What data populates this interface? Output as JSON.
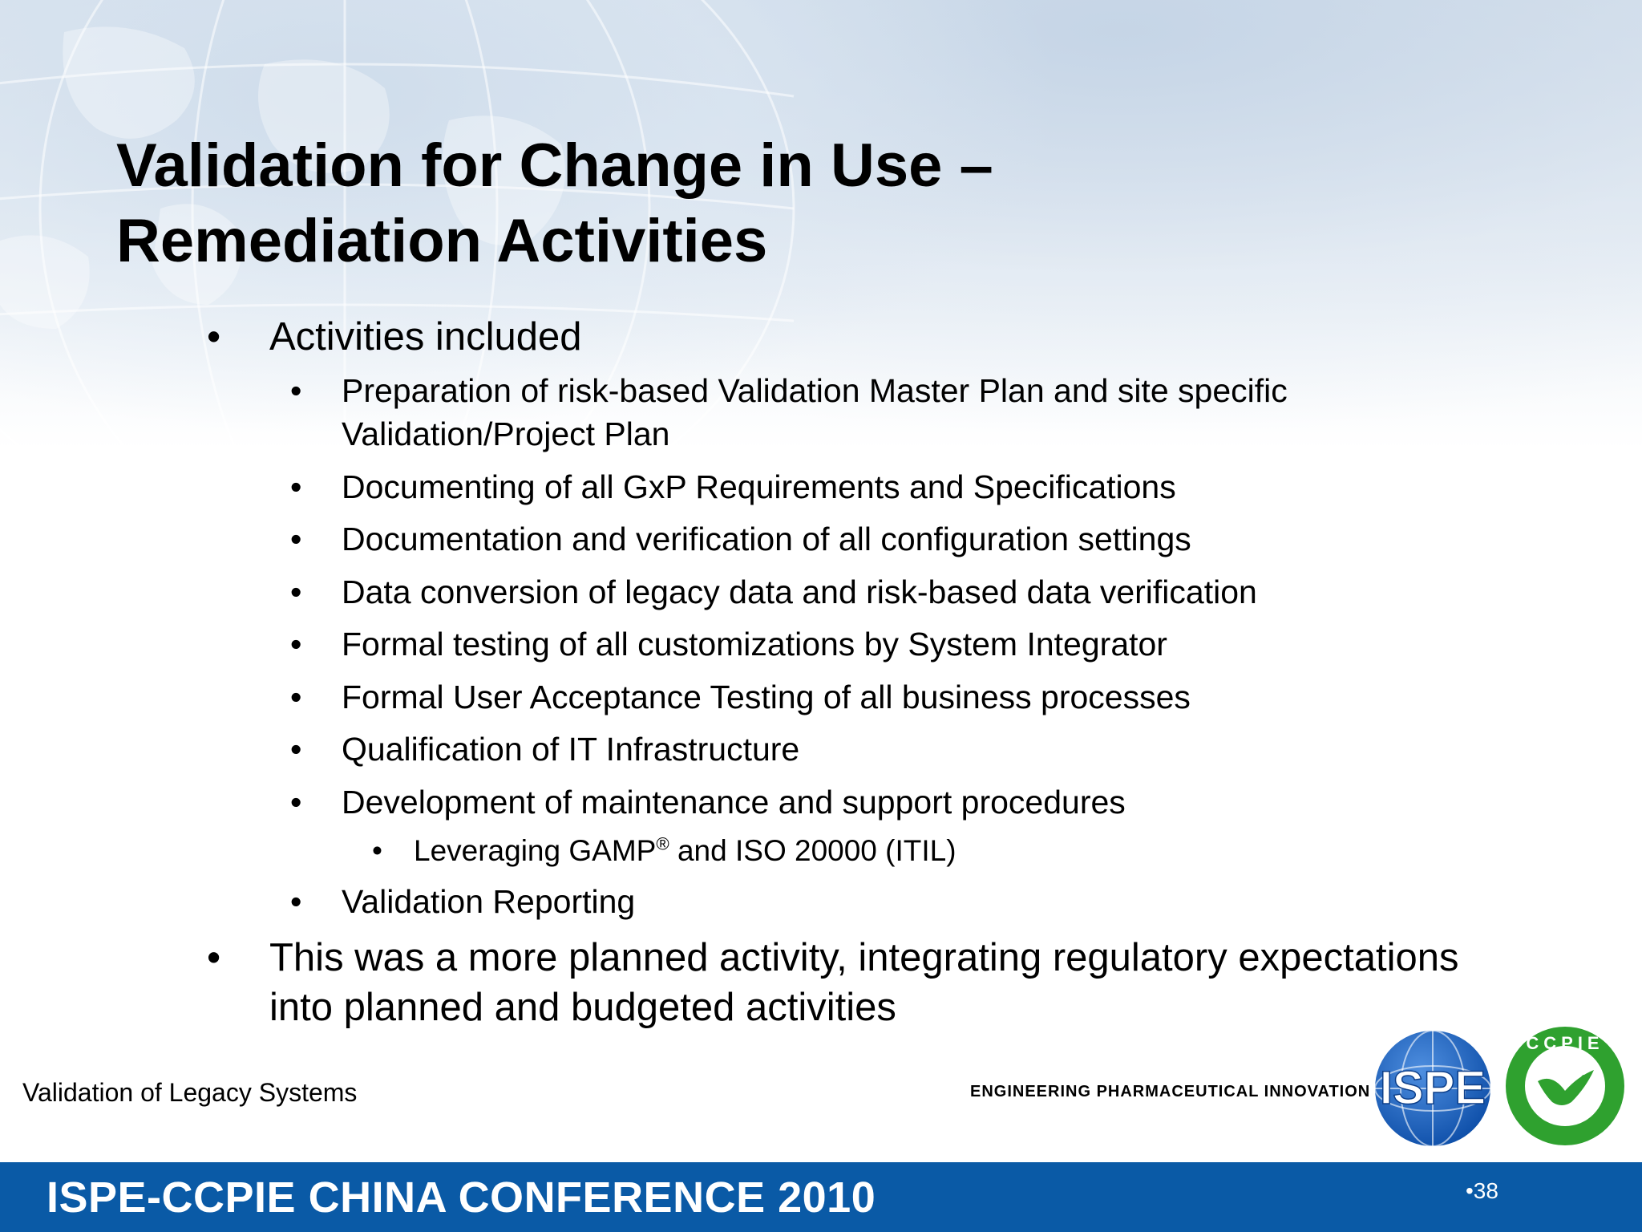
{
  "slide": {
    "title_line1": "Validation for Change in Use –",
    "title_line2": "Remediation Activities",
    "bullet_glyph": "•",
    "bullets": {
      "activities_included": "Activities included",
      "sub_items": [
        {
          "line1": "Preparation of risk-based Validation Master Plan and site specific",
          "line2": "Validation/Project Plan"
        },
        {
          "line1": "Documenting of all GxP Requirements and Specifications"
        },
        {
          "line1": "Documentation and verification of all configuration settings"
        },
        {
          "line1": "Data conversion of legacy data and risk-based data verification"
        },
        {
          "line1": "Formal testing of all customizations by System Integrator"
        },
        {
          "line1": "Formal User Acceptance Testing of all business processes"
        },
        {
          "line1": "Qualification of IT Infrastructure"
        },
        {
          "line1": "Development of maintenance and support procedures"
        }
      ],
      "sub_sub_item": {
        "before": "Leveraging GAMP",
        "sup": "®",
        "after": " and ISO 20000 (ITIL)"
      },
      "validation_reporting": "Validation Reporting",
      "planned_activity_line1": "This was a more planned activity, integrating regulatory expectations",
      "planned_activity_line2": "into planned and budgeted activities"
    }
  },
  "footer": {
    "left_text": "Validation of Legacy Systems",
    "tagline": "ENGINEERING PHARMACEUTICAL INNOVATION",
    "ispe_logo_text": "ISPE",
    "ccpie_logo_text": "CCPIE"
  },
  "bottom_bar": {
    "title": "ISPE-CCPIE CHINA CONFERENCE 2010",
    "page_number": "•38",
    "color": "#0a5aa6"
  }
}
